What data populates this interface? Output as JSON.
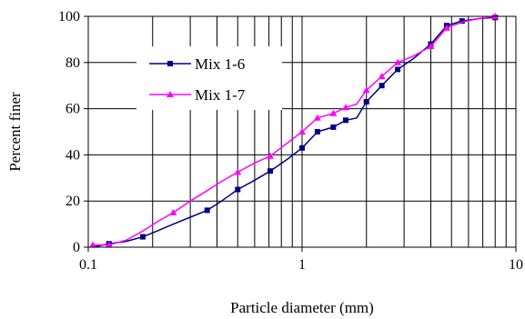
{
  "chart_data": {
    "type": "line",
    "title": "",
    "xlabel": "Particle diameter (mm)",
    "ylabel": "Percent finer",
    "x_scale": "log",
    "xlim": [
      0.1,
      10
    ],
    "ylim": [
      0,
      100
    ],
    "x_ticks": [
      0.1,
      1,
      10
    ],
    "x_tick_labels": [
      "0.1",
      "1",
      "10"
    ],
    "y_ticks": [
      0,
      20,
      40,
      60,
      80,
      100
    ],
    "y_tick_labels": [
      "0",
      "20",
      "40",
      "60",
      "80",
      "100"
    ],
    "grid": {
      "x_minor_log": true,
      "y_major": true
    },
    "legend": {
      "position": "top-left-inside"
    },
    "series": [
      {
        "name": "Mix 1-6",
        "color": "#000080",
        "marker": "square",
        "x": [
          0.105,
          0.125,
          0.15,
          0.18,
          0.21,
          0.25,
          0.3,
          0.36,
          0.42,
          0.5,
          0.6,
          0.71,
          0.85,
          1.0,
          1.18,
          1.4,
          1.6,
          1.8,
          2.0,
          2.36,
          2.8,
          3.35,
          4.0,
          4.75,
          5.6,
          6.7,
          8.0
        ],
        "y": [
          0,
          1.5,
          2.5,
          4.5,
          7,
          10,
          13,
          16,
          20,
          25,
          29,
          33,
          38,
          43,
          50,
          52,
          55,
          56,
          63,
          70,
          77,
          82,
          88,
          96,
          98,
          99,
          99.5
        ],
        "marked_x": [
          0.125,
          0.18,
          0.36,
          0.5,
          0.71,
          1.0,
          1.18,
          1.4,
          1.6,
          2.0,
          2.36,
          2.8,
          4.0,
          4.75,
          5.6,
          8.0
        ]
      },
      {
        "name": "Mix 1-7",
        "color": "#ff00ff",
        "marker": "triangle",
        "x": [
          0.105,
          0.125,
          0.15,
          0.18,
          0.21,
          0.25,
          0.3,
          0.36,
          0.42,
          0.5,
          0.6,
          0.71,
          0.85,
          1.0,
          1.18,
          1.4,
          1.6,
          1.8,
          2.0,
          2.36,
          2.8,
          3.35,
          4.0,
          4.75,
          5.6,
          6.7,
          8.0
        ],
        "y": [
          1,
          1,
          3,
          7,
          11,
          15,
          20,
          24.5,
          28.5,
          32.5,
          36.5,
          39.5,
          45,
          50,
          56,
          58,
          60.5,
          62,
          68,
          74,
          80,
          83,
          87,
          95,
          97.5,
          99,
          100
        ],
        "marked_x": [
          0.105,
          0.125,
          0.25,
          0.5,
          0.71,
          1.0,
          1.18,
          1.4,
          1.6,
          2.0,
          2.36,
          2.8,
          4.0,
          4.75,
          8.0
        ]
      }
    ]
  }
}
